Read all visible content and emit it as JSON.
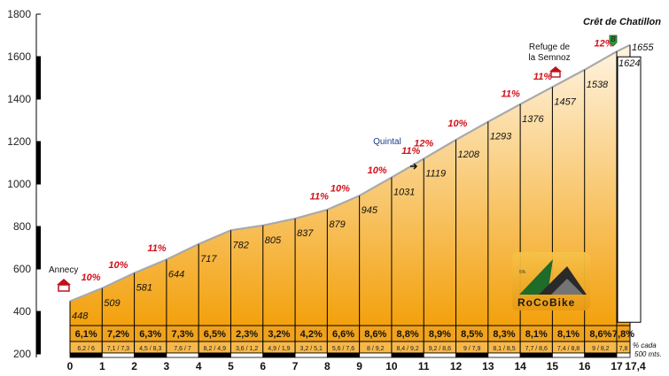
{
  "chart_data": {
    "type": "area",
    "title": "Crêt de Chatillon",
    "ylim": [
      200,
      1800
    ],
    "yticks": [
      200,
      400,
      600,
      800,
      1000,
      1200,
      1400,
      1600,
      1800
    ],
    "x_tick_labels": [
      "0",
      "1",
      "2",
      "3",
      "4",
      "5",
      "6",
      "7",
      "8",
      "9",
      "10",
      "11",
      "12",
      "13",
      "14",
      "15",
      "16",
      "17",
      "17,4"
    ],
    "km": [
      0,
      1,
      2,
      3,
      4,
      5,
      6,
      7,
      8,
      9,
      10,
      11,
      12,
      13,
      14,
      15,
      16,
      17,
      17.4
    ],
    "elevation": [
      448,
      509,
      581,
      644,
      717,
      782,
      805,
      837,
      879,
      945,
      1031,
      1119,
      1208,
      1293,
      1376,
      1457,
      1538,
      1624,
      1655
    ],
    "elevation_labels": [
      "448",
      "509",
      "581",
      "644",
      "717",
      "782",
      "805",
      "837",
      "879",
      "945",
      "1031",
      "1119",
      "1208",
      "1293",
      "1376",
      "1457",
      "1538",
      "1624",
      "1655"
    ],
    "segment_gradients": [
      "6,1%",
      "7,2%",
      "6,3%",
      "7,3%",
      "6,5%",
      "2,3%",
      "3,2%",
      "4,2%",
      "6,6%",
      "8,6%",
      "8,8%",
      "8,9%",
      "8,5%",
      "8,3%",
      "8,1%",
      "8,1%",
      "8,6%",
      "7,8%"
    ],
    "segment_subvalues": [
      "6,2 / 6",
      "7,1 / 7,3",
      "4,5 / 8,3",
      "7,6 / 7",
      "8,2 / 4,9",
      "3,6 / 1,2",
      "4,9 / 1,9",
      "3,2 / 5,1",
      "5,6 / 7,6",
      "8 / 9,2",
      "8,4 / 9,2",
      "9,2 / 8,6",
      "9 / 7,9",
      "8,1 / 8,5",
      "7,7 / 8,6",
      "7,4 / 8,8",
      "9 / 8,2",
      "7,8"
    ],
    "max_gradients": [
      {
        "km": 0.65,
        "label": "10%"
      },
      {
        "km": 1.5,
        "label": "10%"
      },
      {
        "km": 2.7,
        "label": "11%"
      },
      {
        "km": 7.75,
        "label": "11%"
      },
      {
        "km": 8.4,
        "label": "10%"
      },
      {
        "km": 9.55,
        "label": "10%"
      },
      {
        "km": 10.6,
        "label": "11%"
      },
      {
        "km": 11.0,
        "label": "12%"
      },
      {
        "km": 12.05,
        "label": "10%"
      },
      {
        "km": 13.7,
        "label": "11%"
      },
      {
        "km": 14.7,
        "label": "11%"
      },
      {
        "km": 16.6,
        "label": "12%"
      }
    ],
    "annotations": {
      "start": "Annecy",
      "refuge": "Refuge de la Semnoz",
      "quintal": "Quintal",
      "note": "% cada 500 mts.",
      "summit_marker": "B"
    },
    "colors": {
      "fill_top": "#fff4e2",
      "fill_bottom": "#f3a10c",
      "profile_line": "#a9a9a9",
      "gradient_text": "#d4101a",
      "quintal_text": "#1a3a8a",
      "summit_marker": "#2e9a3a"
    }
  },
  "logo": {
    "name": "RoCoBike",
    "mark": "5%"
  }
}
